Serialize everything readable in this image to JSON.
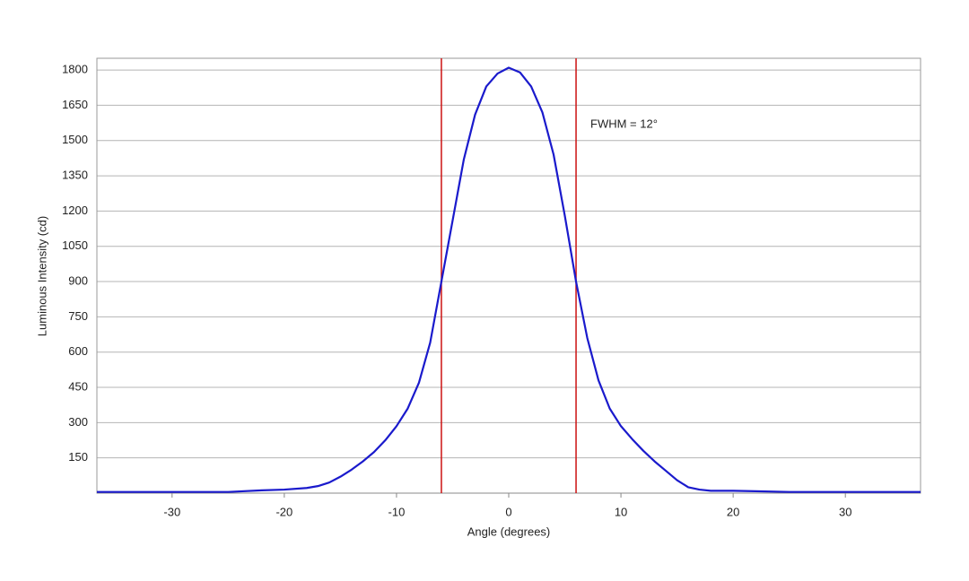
{
  "chart_data": {
    "type": "line",
    "x_label": "Angle (degrees)",
    "y_label": "Luminous Intensity (cd)",
    "annotation": "FWHM = 12°",
    "x": [
      -36.7,
      -36,
      -30,
      -25,
      -22,
      -20,
      -18,
      -17,
      -16,
      -15,
      -14,
      -13,
      -12,
      -11,
      -10,
      -9,
      -8,
      -7,
      -6,
      -5,
      -4,
      -3,
      -2,
      -1,
      0,
      1,
      2,
      3,
      4,
      5,
      6,
      7,
      8,
      9,
      10,
      11,
      12,
      13,
      14,
      15,
      16,
      17,
      18,
      20,
      22,
      25,
      30,
      36,
      36.7
    ],
    "series": [
      {
        "name": "Luminous Intensity",
        "color": "#1a1acc",
        "values": [
          5,
          5,
          5,
          5,
          12,
          15,
          22,
          30,
          45,
          70,
          100,
          135,
          175,
          225,
          285,
          360,
          470,
          640,
          900,
          1160,
          1420,
          1610,
          1730,
          1785,
          1810,
          1790,
          1730,
          1620,
          1440,
          1180,
          900,
          660,
          480,
          360,
          285,
          230,
          180,
          135,
          95,
          55,
          25,
          15,
          10,
          10,
          8,
          5,
          5,
          5,
          5
        ]
      }
    ],
    "vlines": [
      -6,
      6
    ],
    "vline_color": "#cc1111",
    "xlim": [
      -36.7,
      36.7
    ],
    "xticks": [
      -30,
      -20,
      -10,
      0,
      10,
      20,
      30
    ],
    "ylim": [
      0,
      1850
    ],
    "yticks": [
      150,
      300,
      450,
      600,
      750,
      900,
      1050,
      1200,
      1350,
      1500,
      1650,
      1800
    ],
    "grid": true
  }
}
